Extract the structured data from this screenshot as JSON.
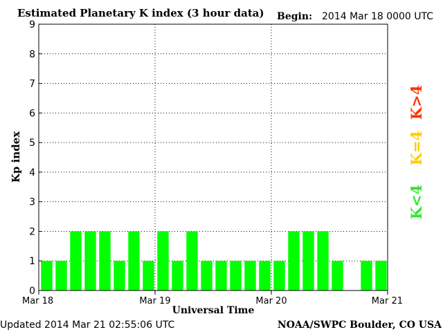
{
  "chart_data": {
    "type": "bar",
    "title": "Estimated Planetary K index (3 hour data)",
    "begin_label": "Begin:",
    "begin_value": "2014 Mar 18 0000 UTC",
    "xlabel": "Universal Time",
    "ylabel": "Kp index",
    "ylim": [
      0,
      9
    ],
    "y_ticks": [
      "0",
      "1",
      "2",
      "3",
      "4",
      "5",
      "6",
      "7",
      "8",
      "9"
    ],
    "x_ticks": [
      "Mar 18",
      "Mar 19",
      "Mar 20",
      "Mar 21"
    ],
    "bar_count": 24,
    "values": [
      1,
      1,
      2,
      2,
      2,
      1,
      2,
      1,
      2,
      1,
      2,
      1,
      1,
      1,
      1,
      1,
      1,
      2,
      2,
      2,
      1,
      null,
      1,
      1
    ],
    "grid": true,
    "bar_color": "#00ff00",
    "legend": [
      {
        "label": "K<4",
        "color": "#33e633"
      },
      {
        "label": "K=4",
        "color": "#ffcc00"
      },
      {
        "label": "K>4",
        "color": "#ff3300"
      }
    ]
  },
  "footer": {
    "updated": "Updated 2014 Mar 21 02:55:06 UTC",
    "credit": "NOAA/SWPC Boulder, CO USA"
  }
}
